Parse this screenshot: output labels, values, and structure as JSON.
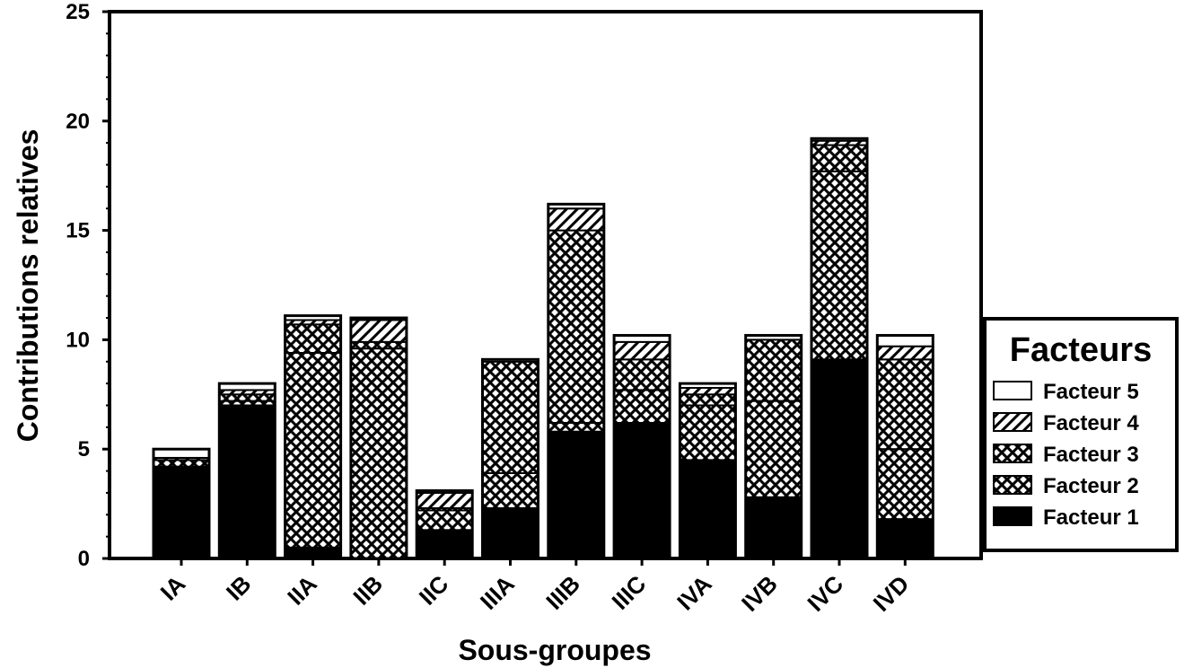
{
  "chart_data": {
    "type": "bar",
    "stacked": true,
    "xlabel": "Sous-groupes",
    "ylabel": "Contributions relatives",
    "ylim": [
      0,
      25
    ],
    "yticks": [
      0,
      5,
      10,
      15,
      20,
      25
    ],
    "categories": [
      "IA",
      "IB",
      "IIA",
      "IIB",
      "IIC",
      "IIIA",
      "IIIB",
      "IIIC",
      "IVA",
      "IVB",
      "IVC",
      "IVD"
    ],
    "legend": {
      "title": "Facteurs",
      "position": "right",
      "order": [
        "Facteur 5",
        "Facteur 4",
        "Facteur 3",
        "Facteur 2",
        "Facteur 1"
      ]
    },
    "series": [
      {
        "name": "Facteur 1",
        "pattern": "solid",
        "values": [
          4.2,
          7.0,
          0.5,
          0.0,
          1.3,
          2.3,
          5.8,
          6.2,
          4.5,
          2.8,
          9.1,
          1.8
        ]
      },
      {
        "name": "Facteur 2",
        "pattern": "crosshatch",
        "values": [
          0.0,
          0.2,
          8.9,
          9.6,
          0.9,
          1.6,
          0.4,
          1.5,
          2.5,
          4.4,
          8.6,
          3.2
        ]
      },
      {
        "name": "Facteur 3",
        "pattern": "crosshatch",
        "values": [
          0.3,
          0.3,
          1.3,
          0.3,
          0.1,
          5.1,
          8.8,
          1.4,
          0.5,
          2.8,
          1.2,
          4.1
        ]
      },
      {
        "name": "Facteur 4",
        "pattern": "diagonal",
        "values": [
          0.1,
          0.2,
          0.2,
          1.0,
          0.7,
          0.0,
          1.0,
          0.8,
          0.3,
          0.0,
          0.2,
          0.6
        ]
      },
      {
        "name": "Facteur 5",
        "pattern": "empty",
        "values": [
          0.4,
          0.3,
          0.2,
          0.1,
          0.1,
          0.1,
          0.2,
          0.3,
          0.2,
          0.2,
          0.1,
          0.5
        ]
      }
    ]
  }
}
